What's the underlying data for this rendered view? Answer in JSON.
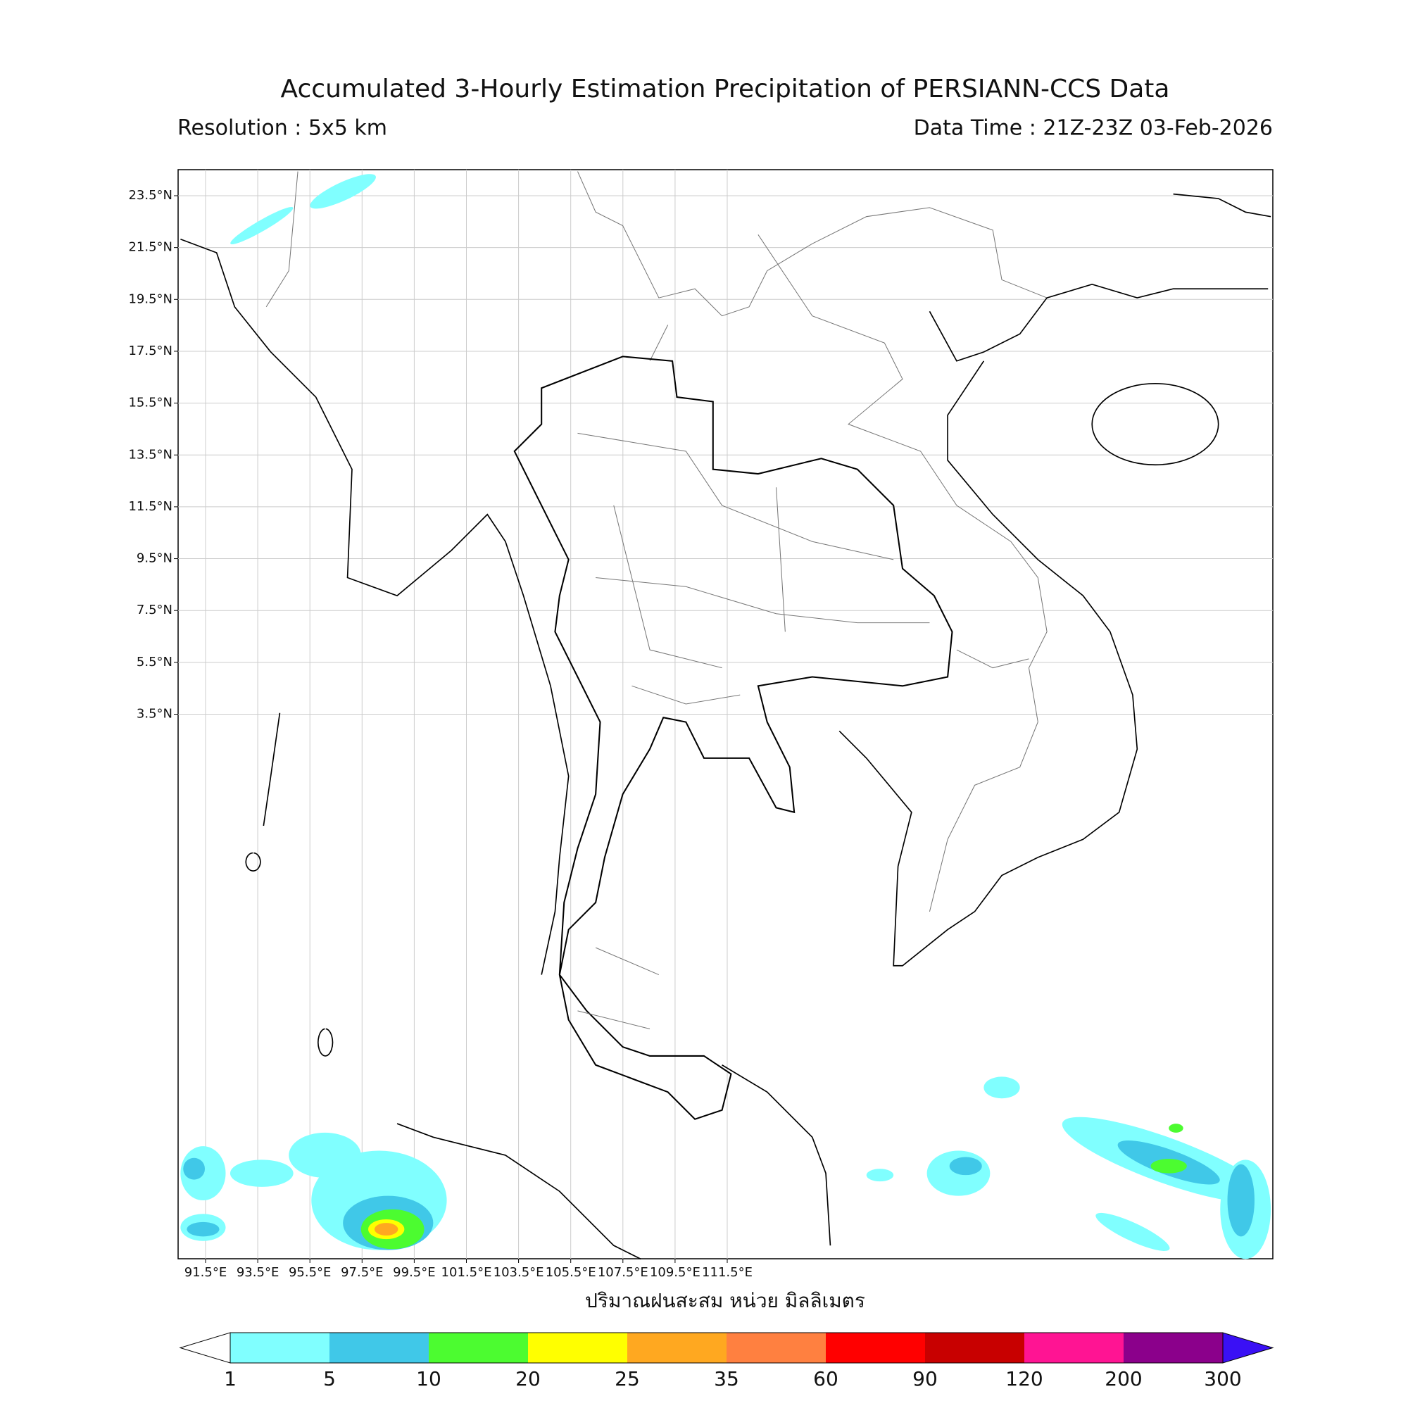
{
  "header": {
    "title": "Accumulated 3-Hourly Estimation Precipitation of PERSIANN-CCS Data",
    "resolution": "Resolution : 5x5 km",
    "data_time": "Data Time : 21Z-23Z 03-Feb-2026"
  },
  "map": {
    "lat_labels": [
      "23.5°N",
      "21.5°N",
      "19.5°N",
      "17.5°N",
      "15.5°N",
      "13.5°N",
      "11.5°N",
      "9.5°N",
      "7.5°N",
      "5.5°N",
      "3.5°N"
    ],
    "lon_labels": [
      "91.5°E",
      "93.5°E",
      "95.5°E",
      "97.5°E",
      "99.5°E",
      "101.5°E",
      "103.5°E",
      "105.5°E",
      "107.5°E",
      "109.5°E",
      "111.5°E"
    ],
    "xlabel": "ปริมาณฝนสะสม หน่วย มิลลิเมตร"
  },
  "colorbar": {
    "levels": [
      1,
      5,
      10,
      20,
      25,
      35,
      60,
      90,
      120,
      200,
      300
    ],
    "colors": [
      "#80ffff",
      "#40c8e8",
      "#4cfc30",
      "#ffff00",
      "#ffa820",
      "#ff8040",
      "#ff0000",
      "#c80000",
      "#ff1493",
      "#8b008b"
    ],
    "under_color": "#ffffff",
    "over_color": "#3a10f5"
  }
}
